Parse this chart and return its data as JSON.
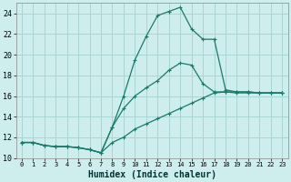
{
  "xlabel": "Humidex (Indice chaleur)",
  "bg_color": "#ceeeed",
  "grid_color": "#aad4d4",
  "line_color": "#1a7a6a",
  "xlim": [
    -0.5,
    23.5
  ],
  "ylim": [
    10,
    25
  ],
  "yticks": [
    10,
    12,
    14,
    16,
    18,
    20,
    22,
    24
  ],
  "xticks": [
    0,
    1,
    2,
    3,
    4,
    5,
    6,
    7,
    8,
    9,
    10,
    11,
    12,
    13,
    14,
    15,
    16,
    17,
    18,
    19,
    20,
    21,
    22,
    23
  ],
  "line1_x": [
    0,
    1,
    2,
    3,
    4,
    5,
    6,
    7,
    8,
    9,
    10,
    11,
    12,
    13,
    14,
    15,
    16,
    17,
    18,
    19,
    20,
    21,
    22,
    23
  ],
  "line1_y": [
    11.5,
    11.5,
    11.2,
    11.1,
    11.1,
    11.0,
    10.8,
    10.5,
    13.0,
    16.0,
    19.5,
    21.8,
    23.8,
    24.2,
    24.6,
    22.5,
    21.5,
    21.5,
    16.6,
    16.4,
    16.4,
    16.3,
    16.3,
    16.3
  ],
  "line2_x": [
    0,
    1,
    2,
    3,
    4,
    5,
    6,
    7,
    8,
    9,
    10,
    11,
    12,
    13,
    14,
    15,
    16,
    17,
    18,
    19,
    20,
    21,
    22,
    23
  ],
  "line2_y": [
    11.5,
    11.5,
    11.2,
    11.1,
    11.1,
    11.0,
    10.8,
    10.5,
    13.0,
    14.8,
    16.0,
    16.8,
    17.5,
    18.5,
    19.2,
    19.0,
    17.2,
    16.4,
    16.4,
    16.3,
    16.3,
    16.3,
    16.3,
    16.3
  ],
  "line3_x": [
    0,
    1,
    2,
    3,
    4,
    5,
    6,
    7,
    8,
    9,
    10,
    11,
    12,
    13,
    14,
    15,
    16,
    17,
    18,
    19,
    20,
    21,
    22,
    23
  ],
  "line3_y": [
    11.5,
    11.5,
    11.2,
    11.1,
    11.1,
    11.0,
    10.8,
    10.5,
    11.5,
    12.0,
    12.8,
    13.3,
    13.8,
    14.3,
    14.8,
    15.3,
    15.8,
    16.3,
    16.4,
    16.4,
    16.4,
    16.3,
    16.3,
    16.3
  ]
}
